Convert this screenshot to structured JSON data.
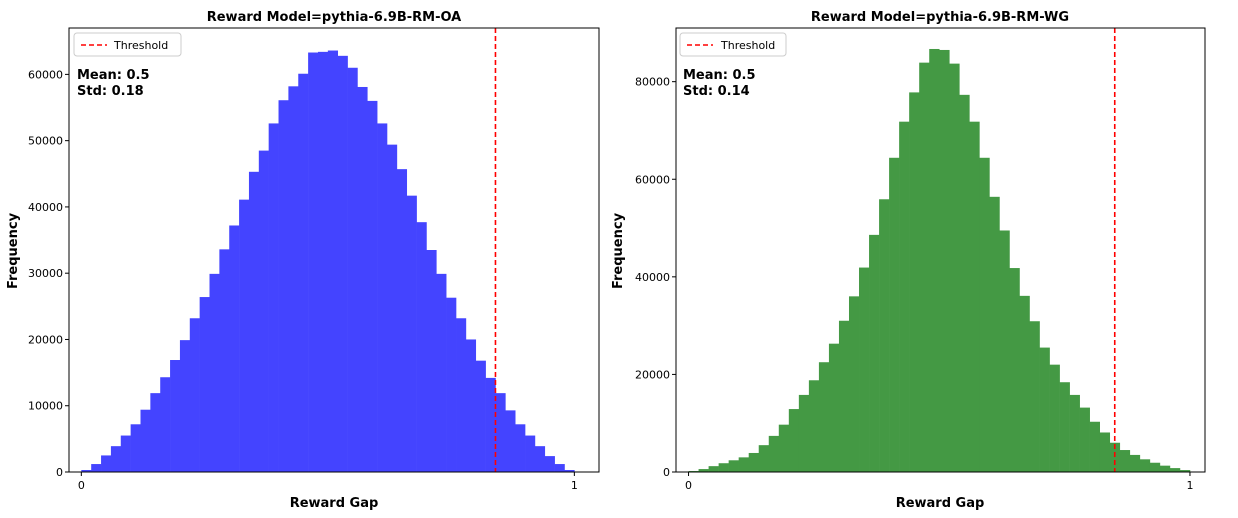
{
  "chart_data": [
    {
      "type": "bar",
      "title": "Reward Model=pythia-6.9B-RM-OA",
      "xlabel": "Reward Gap",
      "ylabel": "Frequency",
      "xlim": [
        -0.025,
        1.05
      ],
      "ylim": [
        0,
        67000
      ],
      "xticks": [
        0,
        1
      ],
      "yticks": [
        0,
        10000,
        20000,
        30000,
        40000,
        50000,
        60000
      ],
      "bar_color": "#4444ff",
      "bin_width": 0.02,
      "bin_starts": [
        0,
        0.02,
        0.04,
        0.06,
        0.08,
        0.1,
        0.12,
        0.14,
        0.16,
        0.18,
        0.2,
        0.22,
        0.24,
        0.26,
        0.28,
        0.3,
        0.32,
        0.34,
        0.36,
        0.38,
        0.4,
        0.42,
        0.44,
        0.46,
        0.48,
        0.5,
        0.52,
        0.54,
        0.56,
        0.58,
        0.6,
        0.62,
        0.64,
        0.66,
        0.68,
        0.7,
        0.72,
        0.74,
        0.76,
        0.78,
        0.8,
        0.82,
        0.84,
        0.86,
        0.88,
        0.9,
        0.92,
        0.94,
        0.96,
        0.98
      ],
      "values": [
        300,
        1200,
        2500,
        3900,
        5500,
        7200,
        9400,
        11900,
        14300,
        16900,
        19900,
        23200,
        26400,
        29900,
        33600,
        37200,
        41100,
        45300,
        48500,
        52600,
        56100,
        58200,
        60100,
        63300,
        63400,
        63600,
        62800,
        61000,
        58100,
        56000,
        52600,
        49400,
        45700,
        41700,
        37700,
        33500,
        29900,
        26300,
        23200,
        20000,
        16800,
        14200,
        11900,
        9300,
        7200,
        5500,
        3900,
        2400,
        1200,
        300
      ],
      "threshold": 0.84,
      "threshold_color": "#ff0000",
      "legend": {
        "entries": [
          "Threshold"
        ],
        "position": "upper left"
      },
      "mean_label": "Mean: 0.5",
      "std_label": "Std: 0.18"
    },
    {
      "type": "bar",
      "title": "Reward Model=pythia-6.9B-RM-WG",
      "xlabel": "Reward Gap",
      "ylabel": "Frequency",
      "xlim": [
        -0.025,
        1.03
      ],
      "ylim": [
        0,
        91000
      ],
      "xticks": [
        0,
        1
      ],
      "yticks": [
        0,
        20000,
        40000,
        60000,
        80000
      ],
      "bar_color": "#449944",
      "bin_width": 0.02,
      "bin_starts": [
        0,
        0.02,
        0.04,
        0.06,
        0.08,
        0.1,
        0.12,
        0.14,
        0.16,
        0.18,
        0.2,
        0.22,
        0.24,
        0.26,
        0.28,
        0.3,
        0.32,
        0.34,
        0.36,
        0.38,
        0.4,
        0.42,
        0.44,
        0.46,
        0.48,
        0.5,
        0.52,
        0.54,
        0.56,
        0.58,
        0.6,
        0.62,
        0.64,
        0.66,
        0.68,
        0.7,
        0.72,
        0.74,
        0.76,
        0.78,
        0.8,
        0.82,
        0.84,
        0.86,
        0.88,
        0.9,
        0.92,
        0.94,
        0.96,
        0.98
      ],
      "values": [
        200,
        600,
        1200,
        1800,
        2400,
        3000,
        3900,
        5500,
        7400,
        9700,
        12900,
        15800,
        18800,
        22500,
        26300,
        31000,
        36000,
        41900,
        48600,
        55900,
        64400,
        71800,
        77800,
        83900,
        86700,
        86500,
        83700,
        77300,
        71800,
        64400,
        56400,
        49500,
        41800,
        36100,
        30900,
        25500,
        22000,
        18400,
        15800,
        13200,
        10300,
        8100,
        6000,
        4500,
        3500,
        2600,
        1900,
        1300,
        800,
        400
      ],
      "threshold": 0.85,
      "threshold_color": "#ff0000",
      "legend": {
        "entries": [
          "Threshold"
        ],
        "position": "upper left"
      },
      "mean_label": "Mean: 0.5",
      "std_label": "Std: 0.14"
    }
  ]
}
